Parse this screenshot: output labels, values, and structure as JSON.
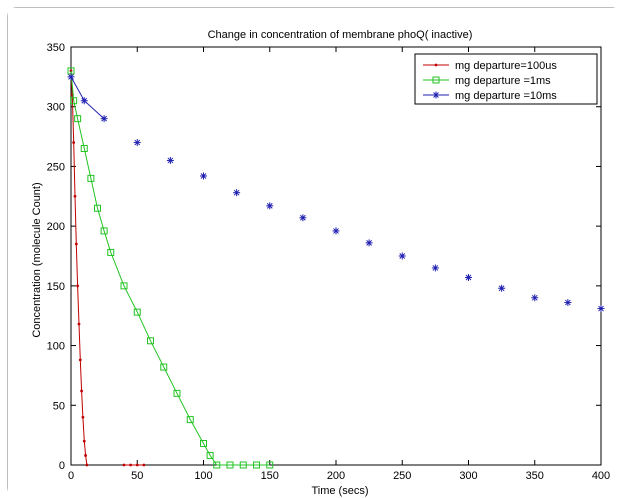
{
  "chart_data": {
    "type": "line",
    "title": "Change in concentration of membrane phoQ( inactive)",
    "xlabel": "Time (secs)",
    "ylabel": "Concentration (molecule Count)",
    "xlim": [
      0,
      400
    ],
    "ylim": [
      0,
      350
    ],
    "x_ticks": [
      "0",
      "50",
      "100",
      "150",
      "200",
      "250",
      "300",
      "350",
      "400"
    ],
    "y_ticks": [
      "0",
      "50",
      "100",
      "150",
      "200",
      "250",
      "300",
      "350"
    ],
    "grid": false,
    "legend_position": "top-right",
    "series": [
      {
        "name": "mg departure=100us",
        "color": "#c00000",
        "marker": "dot",
        "points": [
          [
            0,
            330
          ],
          [
            1,
            310
          ],
          [
            2,
            270
          ],
          [
            3,
            225
          ],
          [
            4,
            185
          ],
          [
            5,
            150
          ],
          [
            6,
            118
          ],
          [
            7,
            88
          ],
          [
            8,
            62
          ],
          [
            9,
            40
          ],
          [
            10,
            20
          ],
          [
            11,
            8
          ],
          [
            12,
            0
          ],
          [
            40,
            0
          ],
          [
            45,
            0
          ],
          [
            50,
            0
          ],
          [
            55,
            0
          ]
        ]
      },
      {
        "name": "mg departure =1ms",
        "color": "#22c322",
        "marker": "square",
        "points": [
          [
            0,
            330
          ],
          [
            2,
            305
          ],
          [
            5,
            290
          ],
          [
            10,
            265
          ],
          [
            15,
            240
          ],
          [
            20,
            215
          ],
          [
            25,
            196
          ],
          [
            30,
            178
          ],
          [
            40,
            150
          ],
          [
            50,
            128
          ],
          [
            60,
            104
          ],
          [
            70,
            82
          ],
          [
            80,
            60
          ],
          [
            90,
            38
          ],
          [
            100,
            18
          ],
          [
            105,
            8
          ],
          [
            110,
            0
          ],
          [
            120,
            0
          ],
          [
            130,
            0
          ],
          [
            140,
            0
          ],
          [
            150,
            0
          ]
        ]
      },
      {
        "name": "mg departure =10ms",
        "color": "#1f1fb0",
        "marker": "star",
        "points": [
          [
            0,
            325
          ],
          [
            10,
            305
          ],
          [
            25,
            290
          ],
          [
            50,
            270
          ],
          [
            75,
            255
          ],
          [
            100,
            242
          ],
          [
            125,
            228
          ],
          [
            150,
            217
          ],
          [
            175,
            207
          ],
          [
            200,
            196
          ],
          [
            225,
            186
          ],
          [
            250,
            175
          ],
          [
            275,
            165
          ],
          [
            300,
            157
          ],
          [
            325,
            148
          ],
          [
            350,
            140
          ],
          [
            375,
            136
          ],
          [
            400,
            131
          ]
        ]
      }
    ]
  }
}
